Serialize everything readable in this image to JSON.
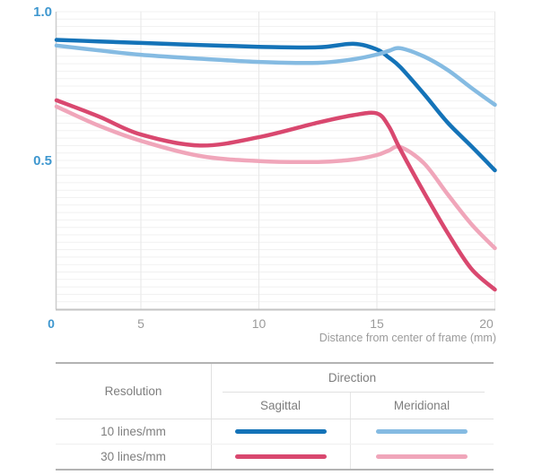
{
  "chart_data": {
    "type": "line",
    "title": "",
    "xlabel": "Distance from center of frame (mm)",
    "ylabel": "",
    "xlim": [
      0,
      20
    ],
    "ylim": [
      0,
      1.0
    ],
    "grid": "fine horizontal gridlines every 0.025, vertical gridlines at x ticks",
    "legend_position": "table below chart",
    "xticks": {
      "values": [
        0,
        5,
        10,
        15,
        20
      ],
      "labels": [
        "0",
        "5",
        "10",
        "15",
        "20"
      ]
    },
    "yticks": {
      "values": [
        1.0,
        0.5
      ],
      "labels": [
        "1.0",
        "0.5"
      ]
    },
    "x": [
      0,
      2.5,
      5,
      7.5,
      10,
      12.5,
      14,
      15,
      15.5,
      16,
      17,
      18,
      19,
      20
    ],
    "series": [
      {
        "name": "10 lines/mm Sagittal",
        "color": "#1473b8",
        "values": [
          0.905,
          0.9,
          0.895,
          0.888,
          0.882,
          0.88,
          0.892,
          0.873,
          0.846,
          0.813,
          0.723,
          0.627,
          0.548,
          0.467
        ]
      },
      {
        "name": "10 lines/mm Meridional",
        "color": "#85bbe2",
        "values": [
          0.886,
          0.87,
          0.855,
          0.842,
          0.831,
          0.828,
          0.84,
          0.856,
          0.868,
          0.877,
          0.849,
          0.804,
          0.744,
          0.687
        ]
      },
      {
        "name": "30 lines/mm Sagittal",
        "color": "#d9486f",
        "values": [
          0.702,
          0.648,
          0.587,
          0.55,
          0.578,
          0.627,
          0.652,
          0.658,
          0.615,
          0.536,
          0.392,
          0.256,
          0.136,
          0.066
        ]
      },
      {
        "name": "30 lines/mm Meridional",
        "color": "#f0a6ba",
        "values": [
          0.681,
          0.617,
          0.566,
          0.515,
          0.498,
          0.495,
          0.503,
          0.518,
          0.533,
          0.545,
          0.49,
          0.386,
          0.286,
          0.205
        ]
      }
    ],
    "tick_label_color_y": "#3e97cf",
    "tick_label_color_x": "#9b9b9b"
  },
  "table": {
    "resolution_header": "Resolution",
    "direction_header": "Direction",
    "col_sagittal": "Sagittal",
    "col_meridional": "Meridional",
    "rows": [
      {
        "resolution": "10 lines/mm",
        "sagittal_color": "#1473b8",
        "meridional_color": "#85bbe2"
      },
      {
        "resolution": "30 lines/mm",
        "sagittal_color": "#d9486f",
        "meridional_color": "#f0a6ba"
      }
    ]
  }
}
